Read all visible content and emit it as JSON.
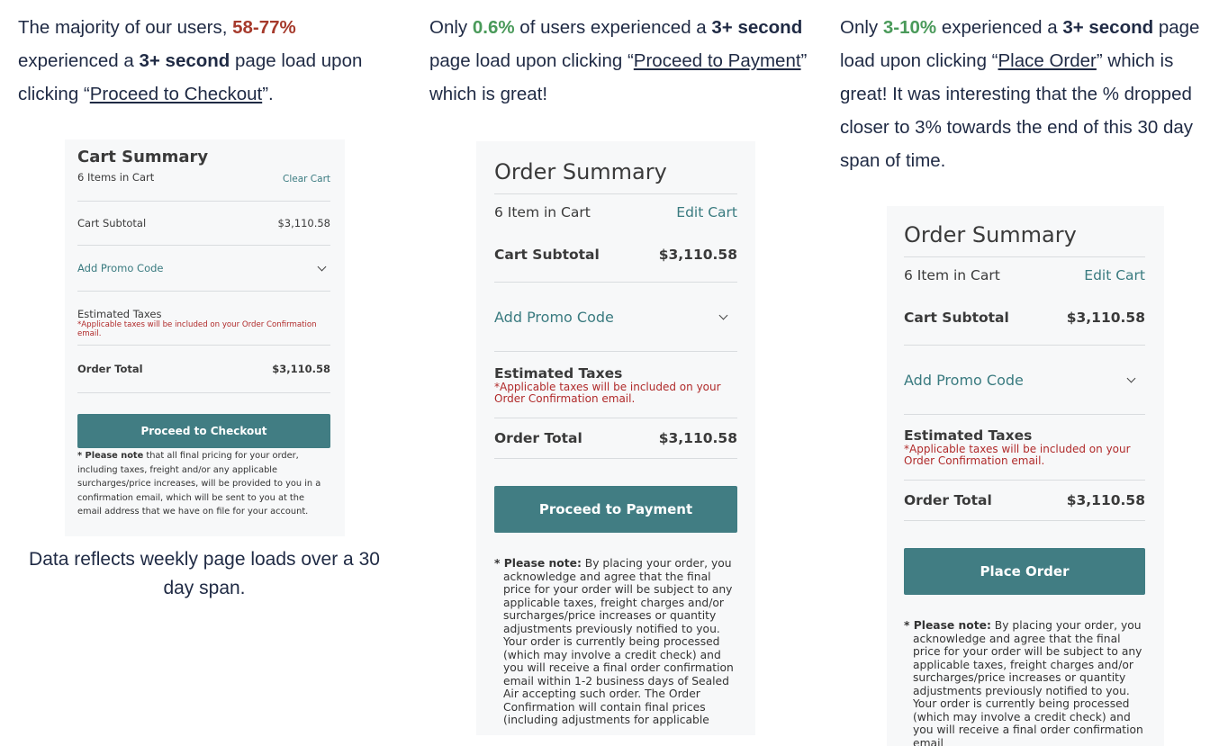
{
  "col1": {
    "t1": "The majority of our users, ",
    "pct": "58-77%",
    "t2": " experienced a ",
    "b1": "3+ second",
    "t3": " page load upon clicking “",
    "link": "Proceed to Checkout",
    "t4": "”."
  },
  "col2": {
    "t1": "Only ",
    "pct": "0.6%",
    "t2": " of users experienced a ",
    "b1": "3+ second",
    "t3": " page load upon clicking “",
    "link": "Proceed to Payment",
    "t4": "” which is great!"
  },
  "col3": {
    "t1": "Only ",
    "pct": "3-10%",
    "t2": " experienced a ",
    "b1": "3+ second",
    "t3": " page load upon clicking “",
    "link": "Place Order",
    "t4": "” which is great! It was interesting that the % dropped closer to 3% towards the end of this 30 day span of time."
  },
  "caption": "Data reflects weekly page loads over a 30 day span.",
  "panel1": {
    "title": "Cart Summary",
    "items": "6 Items in Cart",
    "clear": "Clear Cart",
    "subtotal_label": "Cart Subtotal",
    "subtotal_value": "$3,110.58",
    "promo": "Add Promo Code",
    "taxes_label": "Estimated Taxes",
    "taxes_note": "*Applicable taxes will be included on your Order Confirmation email.",
    "total_label": "Order Total",
    "total_value": "$3,110.58",
    "button": "Proceed to Checkout",
    "note_bold": "* Please note",
    "note_text": " that all final pricing for your order, including taxes, freight and/or any applicable surcharges/price increases, will be provided to you in a confirmation email, which will be sent to you at the email address that we have on file for your account."
  },
  "panel2": {
    "title": "Order Summary",
    "items": "6 Item in Cart",
    "edit": "Edit Cart",
    "subtotal_label": "Cart Subtotal",
    "subtotal_value": "$3,110.58",
    "promo": "Add Promo Code",
    "taxes_label": "Estimated Taxes",
    "taxes_note": "*Applicable taxes will be included on your Order Confirmation email.",
    "total_label": "Order Total",
    "total_value": "$3,110.58",
    "button": "Proceed to Payment",
    "note_bold": "* Please note:",
    "note_text": " By placing your order, you acknowledge and agree that the final price for your order will be subject to any applicable taxes, freight charges and/or surcharges/price increases or quantity adjustments previously notified to you. Your order is currently being processed (which may involve a credit check) and you will receive a final order confirmation email within 1-2 business days of Sealed Air accepting such order. The Order Confirmation will contain final prices (including adjustments for applicable"
  },
  "panel3": {
    "title": "Order Summary",
    "items": "6 Item in Cart",
    "edit": "Edit Cart",
    "subtotal_label": "Cart Subtotal",
    "subtotal_value": "$3,110.58",
    "promo": "Add Promo Code",
    "taxes_label": "Estimated Taxes",
    "taxes_note": "*Applicable taxes will be included on your Order Confirmation email.",
    "total_label": "Order Total",
    "total_value": "$3,110.58",
    "button": "Place Order",
    "note_bold": "* Please note:",
    "note_text": " By placing your order, you acknowledge and agree that the final price for your order will be subject to any applicable taxes, freight charges and/or surcharges/price increases or quantity adjustments previously notified to you. Your order is currently being processed (which may involve a credit check) and you will receive a final order confirmation email"
  },
  "colors": {
    "alert_red": "#a63a2c",
    "good_green": "#4a9a5a",
    "button_teal": "#417d83",
    "link_teal": "#3a7b80",
    "text_navy": "#1f2a44"
  }
}
